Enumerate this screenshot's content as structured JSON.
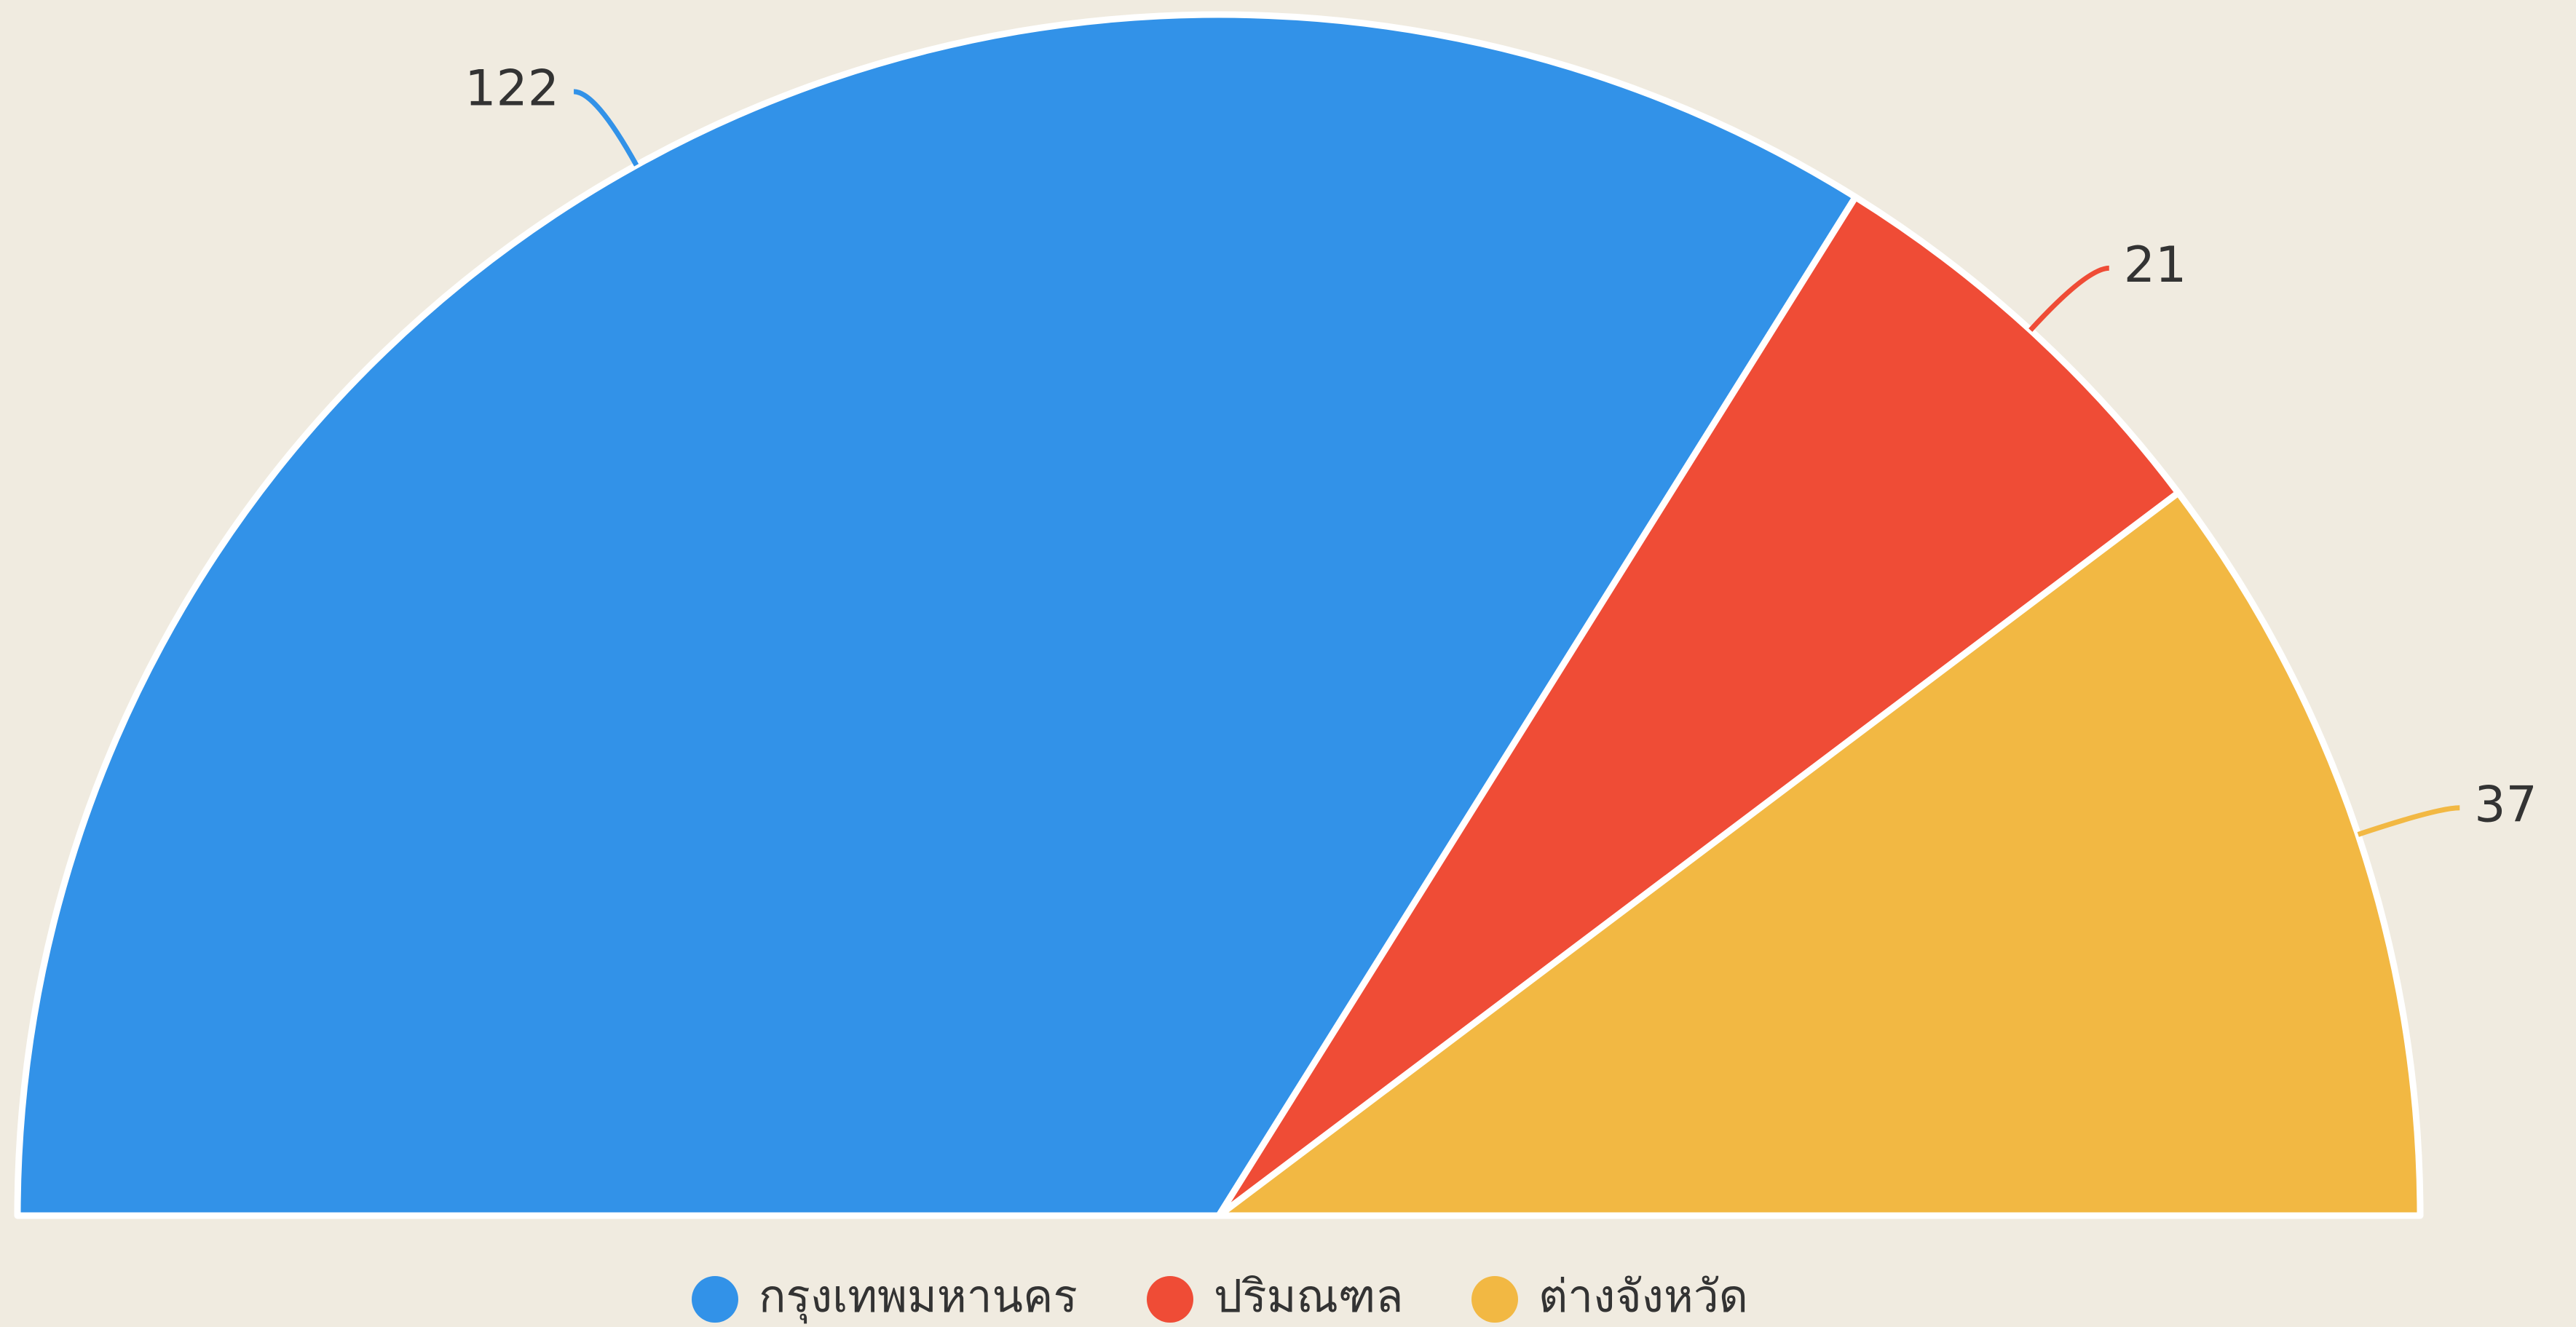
{
  "chart_data": {
    "type": "pie",
    "half": true,
    "categories": [
      "กรุงเทพมหานคร",
      "ปริมณฑล",
      "ต่างจังหวัด"
    ],
    "values": [
      122,
      21,
      37
    ],
    "colors": [
      "#3292e8",
      "#ef4c36",
      "#f2b843"
    ],
    "legend": "bottom"
  }
}
